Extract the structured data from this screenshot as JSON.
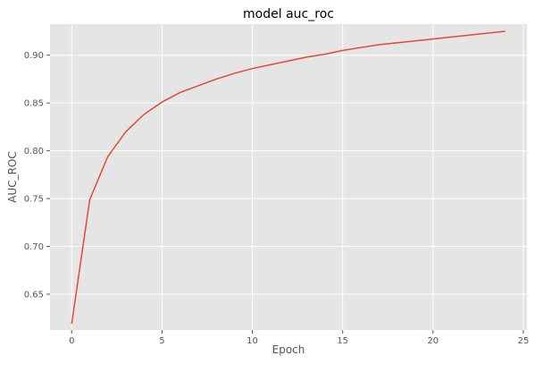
{
  "chart_data": {
    "type": "line",
    "title": "model auc_roc",
    "xlabel": "Epoch",
    "ylabel": "AUC_ROC",
    "xlim": [
      -1.2,
      25.2
    ],
    "ylim": [
      0.6125,
      0.9325
    ],
    "x_ticks": [
      0,
      5,
      10,
      15,
      20,
      25
    ],
    "y_ticks": [
      0.65,
      0.7,
      0.75,
      0.8,
      0.85,
      0.9
    ],
    "grid": true,
    "series": [
      {
        "color": "#e24a33",
        "x": [
          0,
          1,
          2,
          3,
          4,
          5,
          6,
          7,
          8,
          9,
          10,
          11,
          12,
          13,
          14,
          15,
          16,
          17,
          18,
          19,
          20,
          21,
          22,
          23,
          24
        ],
        "values": [
          0.619,
          0.749,
          0.794,
          0.82,
          0.838,
          0.851,
          0.861,
          0.868,
          0.875,
          0.881,
          0.886,
          0.89,
          0.894,
          0.898,
          0.901,
          0.905,
          0.908,
          0.911,
          0.913,
          0.915,
          0.917,
          0.919,
          0.921,
          0.923,
          0.925
        ]
      }
    ]
  }
}
